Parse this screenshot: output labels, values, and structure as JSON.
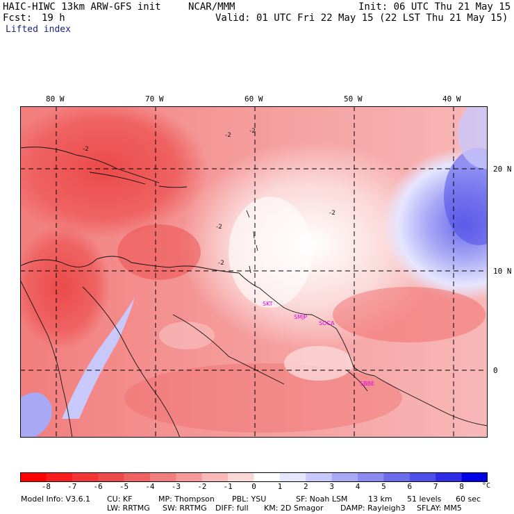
{
  "header": {
    "model": "HAIC-HIWC 13km ARW-GFS init",
    "org": "NCAR/MMM",
    "init": "Init: 06 UTC Thu 21 May 15",
    "fcst_label": "Fcst:",
    "fcst_value": "19 h",
    "valid": "Valid: 01 UTC Fri 22 May 15 (22 LST Thu 21 May 15)",
    "field": "Lifted index"
  },
  "map": {
    "lon_labels": [
      "80 W",
      "70 W",
      "60 W",
      "50 W",
      "40 W"
    ],
    "lat_labels": [
      "20 N",
      "10 N",
      "0"
    ],
    "contour_labels": [
      "-2",
      "-2",
      "-2",
      "-2",
      "-2",
      "-2"
    ],
    "stations": [
      "SKT",
      "SMJP",
      "SOCA",
      "SBBE"
    ]
  },
  "colorbar": {
    "ticks": [
      "-8",
      "-7",
      "-6",
      "-5",
      "-4",
      "-3",
      "-2",
      "-1",
      "0",
      "1",
      "2",
      "3",
      "4",
      "5",
      "6",
      "7",
      "8"
    ],
    "unit": "°C",
    "colors": [
      "#ff0000",
      "#f81c1c",
      "#f23434",
      "#ec4a4a",
      "#ef6262",
      "#f27d7d",
      "#f59a9a",
      "#f8b8b8",
      "#fbd8d8",
      "#ffffff",
      "#e6e6ff",
      "#c8c8fb",
      "#a8a8f5",
      "#8a8af0",
      "#6b6bec",
      "#4e4ee9",
      "#2d2de8",
      "#0000e6"
    ]
  },
  "footer": {
    "line1": [
      "Model Info: V3.6.1",
      "CU: KF",
      "MP: Thompson",
      "PBL: YSU",
      "SF: Noah LSM",
      "13 km",
      "51 levels",
      "60 sec"
    ],
    "line2": [
      "LW: RRTMG",
      "SW: RRTMG",
      "DIFF: full",
      "KM: 2D Smagor",
      "DAMP: Rayleigh3",
      "SFLAY: MM5"
    ]
  }
}
